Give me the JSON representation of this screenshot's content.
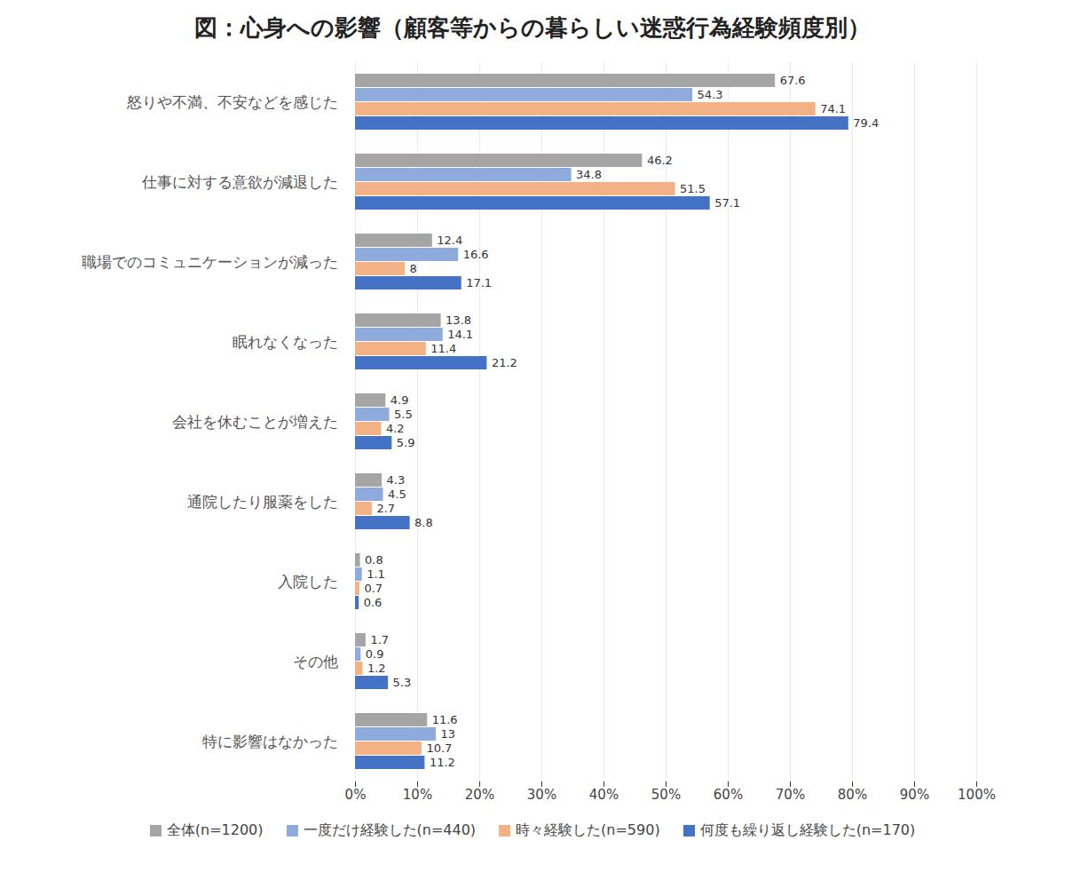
{
  "chart_data": {
    "type": "bar",
    "title": "図：心身への影響（顧客等からの暮らしい迷惑行為経験頻度別）",
    "orientation": "horizontal",
    "categories": [
      "怒りや不満、不安などを感じた",
      "仕事に対する意欲が減退した",
      "職場でのコミュニケーションが減った",
      "眠れなくなった",
      "会社を休むことが増えた",
      "通院したり服薬をした",
      "入院した",
      "その他",
      "特に影響はなかった"
    ],
    "series": [
      {
        "name": "全体(n=1200)",
        "color": "#a5a5a5",
        "values": [
          67.6,
          46.2,
          12.4,
          13.8,
          4.9,
          4.3,
          0.8,
          1.7,
          11.6
        ]
      },
      {
        "name": "一度だけ経験した(n=440)",
        "color": "#8faadc",
        "values": [
          54.3,
          34.8,
          16.6,
          14.1,
          5.5,
          4.5,
          1.1,
          0.9,
          13
        ]
      },
      {
        "name": "時々経験した(n=590)",
        "color": "#f4b183",
        "values": [
          74.1,
          51.5,
          8,
          11.4,
          4.2,
          2.7,
          0.7,
          1.2,
          10.7
        ]
      },
      {
        "name": "何度も繰り返し経験した(n=170)",
        "color": "#4472c4",
        "values": [
          79.4,
          57.1,
          17.1,
          21.2,
          5.9,
          8.8,
          0.6,
          5.3,
          11.2
        ]
      }
    ],
    "xlim": [
      0,
      100
    ],
    "xticks": [
      {
        "value": 0,
        "label": "0%"
      },
      {
        "value": 10,
        "label": "10%"
      },
      {
        "value": 20,
        "label": "20%"
      },
      {
        "value": 30,
        "label": "30%"
      },
      {
        "value": 40,
        "label": "40%"
      },
      {
        "value": 50,
        "label": "50%"
      },
      {
        "value": 60,
        "label": "60%"
      },
      {
        "value": 70,
        "label": "70%"
      },
      {
        "value": 80,
        "label": "80%"
      },
      {
        "value": 90,
        "label": "90%"
      },
      {
        "value": 100,
        "label": "100%"
      }
    ],
    "grid": true,
    "data_labels": true,
    "legend": "bottom"
  }
}
